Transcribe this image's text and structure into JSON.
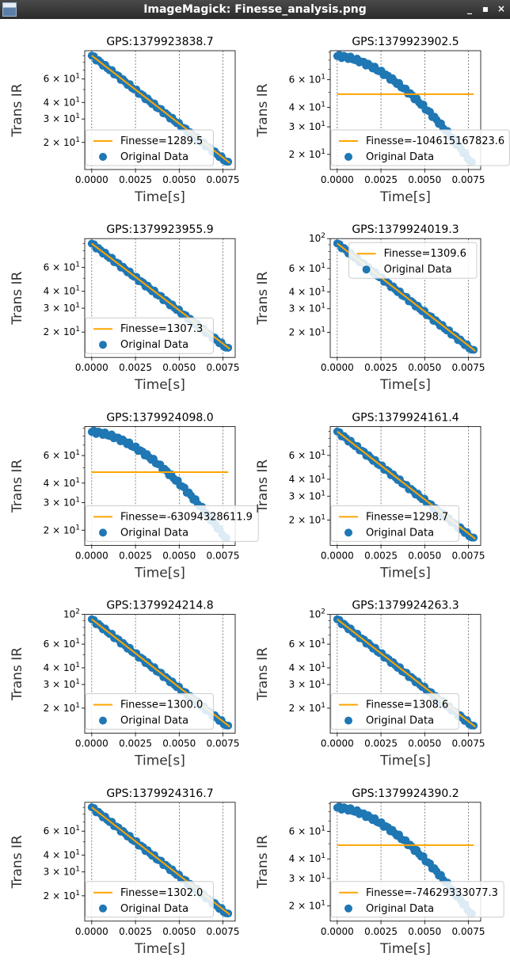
{
  "window": {
    "title": "ImageMagick: Finesse_analysis.png",
    "minimize_glyph": "_",
    "maximize_glyph": "▪",
    "close_glyph": "×"
  },
  "colors": {
    "scatter": "#1f77b4",
    "fit": "#ffa500",
    "grid": "#333333"
  },
  "chart_data": [
    {
      "type": "scatter",
      "title": "GPS:1379923838.7",
      "xlabel": "Time[s]",
      "ylabel": "Trans IR",
      "yscale": "log",
      "xlim": [
        -0.0004,
        0.0082
      ],
      "ylim": [
        12.5,
        98
      ],
      "xticks": [
        "0.0000",
        "0.0025",
        "0.0050",
        "0.0075"
      ],
      "yticks": [
        "2 × 10^1",
        "3 × 10^1",
        "4 × 10^1",
        "6 × 10^1"
      ],
      "grid": "x-axis dashed",
      "legend": "lower-left",
      "series": [
        {
          "name": "Finesse=1289.5",
          "kind": "line",
          "x": [
            0.0,
            0.0079
          ],
          "y": [
            90,
            14
          ]
        },
        {
          "name": "Original Data",
          "kind": "scatter",
          "profile": "exponential",
          "x_range": [
            0.0,
            0.0078
          ],
          "y_start": 90,
          "y_end": 14
        }
      ]
    },
    {
      "type": "scatter",
      "title": "GPS:1379923902.5",
      "xlabel": "Time[s]",
      "ylabel": "Trans IR",
      "yscale": "log",
      "xlim": [
        -0.0004,
        0.0082
      ],
      "ylim": [
        16,
        92
      ],
      "xticks": [
        "0.0000",
        "0.0025",
        "0.0050",
        "0.0075"
      ],
      "yticks": [
        "2 × 10^1",
        "3 × 10^1",
        "4 × 10^1",
        "6 × 10^1"
      ],
      "grid": "x-axis dashed",
      "legend": "lower-left",
      "series": [
        {
          "name": "Finesse=-104615167823.6",
          "kind": "line",
          "x": [
            0.0,
            0.0078
          ],
          "y": [
            48.5,
            48.5
          ]
        },
        {
          "name": "Original Data",
          "kind": "scatter",
          "profile": "shoulder",
          "x_range": [
            0.0,
            0.0077
          ],
          "y_start": 85,
          "y_end": 17.5
        }
      ]
    },
    {
      "type": "scatter",
      "title": "GPS:1379923955.9",
      "xlabel": "Time[s]",
      "ylabel": "Trans IR",
      "yscale": "log",
      "xlim": [
        -0.0004,
        0.0082
      ],
      "ylim": [
        13,
        98
      ],
      "xticks": [
        "0.0000",
        "0.0025",
        "0.0050",
        "0.0075"
      ],
      "yticks": [
        "2 × 10^1",
        "3 × 10^1",
        "4 × 10^1",
        "6 × 10^1"
      ],
      "grid": "x-axis dashed",
      "legend": "lower-left",
      "series": [
        {
          "name": "Finesse=1307.3",
          "kind": "line",
          "x": [
            0.0,
            0.0079
          ],
          "y": [
            90,
            15
          ]
        },
        {
          "name": "Original Data",
          "kind": "scatter",
          "profile": "exponential",
          "x_range": [
            0.0,
            0.0078
          ],
          "y_start": 90,
          "y_end": 15
        }
      ]
    },
    {
      "type": "scatter",
      "title": "GPS:1379924019.3",
      "xlabel": "Time[s]",
      "ylabel": "Trans IR",
      "yscale": "log",
      "xlim": [
        -0.0004,
        0.0082
      ],
      "ylim": [
        13,
        100
      ],
      "xticks": [
        "0.0000",
        "0.0025",
        "0.0050",
        "0.0075"
      ],
      "yticks": [
        "2 × 10^1",
        "3 × 10^1",
        "4 × 10^1",
        "6 × 10^1",
        "10^2"
      ],
      "grid": "x-axis dashed",
      "legend": "upper-right",
      "series": [
        {
          "name": "Finesse=1309.6",
          "kind": "line",
          "x": [
            0.0,
            0.0079
          ],
          "y": [
            92,
            14.5
          ]
        },
        {
          "name": "Original Data",
          "kind": "scatter",
          "profile": "exponential",
          "x_range": [
            0.0,
            0.0078
          ],
          "y_start": 92,
          "y_end": 14.5
        }
      ]
    },
    {
      "type": "scatter",
      "title": "GPS:1379924098.0",
      "xlabel": "Time[s]",
      "ylabel": "Trans IR",
      "yscale": "log",
      "xlim": [
        -0.0004,
        0.0082
      ],
      "ylim": [
        16,
        92
      ],
      "xticks": [
        "0.0000",
        "0.0025",
        "0.0050",
        "0.0075"
      ],
      "yticks": [
        "2 × 10^1",
        "3 × 10^1",
        "4 × 10^1",
        "6 × 10^1"
      ],
      "grid": "x-axis dashed",
      "legend": "lower-left",
      "series": [
        {
          "name": "Finesse=-63094328611.9",
          "kind": "line",
          "x": [
            0.0,
            0.0078
          ],
          "y": [
            47,
            47
          ]
        },
        {
          "name": "Original Data",
          "kind": "scatter",
          "profile": "shoulder",
          "x_range": [
            0.0,
            0.0077
          ],
          "y_start": 85,
          "y_end": 17.5
        }
      ]
    },
    {
      "type": "scatter",
      "title": "GPS:1379924161.4",
      "xlabel": "Time[s]",
      "ylabel": "Trans IR",
      "yscale": "log",
      "xlim": [
        -0.0004,
        0.0082
      ],
      "ylim": [
        13,
        98
      ],
      "xticks": [
        "0.0000",
        "0.0025",
        "0.0050",
        "0.0075"
      ],
      "yticks": [
        "2 × 10^1",
        "3 × 10^1",
        "4 × 10^1",
        "6 × 10^1"
      ],
      "grid": "x-axis dashed",
      "legend": "lower-left",
      "series": [
        {
          "name": "Finesse=1298.7",
          "kind": "line",
          "x": [
            0.0,
            0.0079
          ],
          "y": [
            90,
            14.5
          ]
        },
        {
          "name": "Original Data",
          "kind": "scatter",
          "profile": "exponential",
          "x_range": [
            0.0,
            0.0078
          ],
          "y_start": 90,
          "y_end": 14.5
        }
      ]
    },
    {
      "type": "scatter",
      "title": "GPS:1379924214.8",
      "xlabel": "Time[s]",
      "ylabel": "Trans IR",
      "yscale": "log",
      "xlim": [
        -0.0004,
        0.0082
      ],
      "ylim": [
        13,
        100
      ],
      "xticks": [
        "0.0000",
        "0.0025",
        "0.0050",
        "0.0075"
      ],
      "yticks": [
        "2 × 10^1",
        "3 × 10^1",
        "4 × 10^1",
        "6 × 10^1",
        "10^2"
      ],
      "grid": "x-axis dashed",
      "legend": "lower-left",
      "series": [
        {
          "name": "Finesse=1300.0",
          "kind": "line",
          "x": [
            0.0,
            0.0079
          ],
          "y": [
            92,
            14.5
          ]
        },
        {
          "name": "Original Data",
          "kind": "scatter",
          "profile": "exponential",
          "x_range": [
            0.0,
            0.0078
          ],
          "y_start": 92,
          "y_end": 14.5
        }
      ]
    },
    {
      "type": "scatter",
      "title": "GPS:1379924263.3",
      "xlabel": "Time[s]",
      "ylabel": "Trans IR",
      "yscale": "log",
      "xlim": [
        -0.0004,
        0.0082
      ],
      "ylim": [
        13,
        100
      ],
      "xticks": [
        "0.0000",
        "0.0025",
        "0.0050",
        "0.0075"
      ],
      "yticks": [
        "2 × 10^1",
        "3 × 10^1",
        "4 × 10^1",
        "6 × 10^1",
        "10^2"
      ],
      "grid": "x-axis dashed",
      "legend": "lower-left",
      "series": [
        {
          "name": "Finesse=1308.6",
          "kind": "line",
          "x": [
            0.0,
            0.0079
          ],
          "y": [
            92,
            14.5
          ]
        },
        {
          "name": "Original Data",
          "kind": "scatter",
          "profile": "exponential",
          "x_range": [
            0.0,
            0.0078
          ],
          "y_start": 92,
          "y_end": 14.5
        }
      ]
    },
    {
      "type": "scatter",
      "title": "GPS:1379924316.7",
      "xlabel": "Time[s]",
      "ylabel": "Trans IR",
      "yscale": "log",
      "xlim": [
        -0.0004,
        0.0082
      ],
      "ylim": [
        13,
        98
      ],
      "xticks": [
        "0.0000",
        "0.0025",
        "0.0050",
        "0.0075"
      ],
      "yticks": [
        "2 × 10^1",
        "3 × 10^1",
        "4 × 10^1",
        "6 × 10^1"
      ],
      "grid": "x-axis dashed",
      "legend": "lower-left",
      "series": [
        {
          "name": "Finesse=1302.0",
          "kind": "line",
          "x": [
            0.0,
            0.0079
          ],
          "y": [
            90,
            14.5
          ]
        },
        {
          "name": "Original Data",
          "kind": "scatter",
          "profile": "exponential",
          "x_range": [
            0.0,
            0.0078
          ],
          "y_start": 90,
          "y_end": 14.5
        }
      ]
    },
    {
      "type": "scatter",
      "title": "GPS:1379924390.2",
      "xlabel": "Time[s]",
      "ylabel": "Trans IR",
      "yscale": "log",
      "xlim": [
        -0.0004,
        0.0082
      ],
      "ylim": [
        16,
        92
      ],
      "xticks": [
        "0.0000",
        "0.0025",
        "0.0050",
        "0.0075"
      ],
      "yticks": [
        "2 × 10^1",
        "3 × 10^1",
        "4 × 10^1",
        "6 × 10^1"
      ],
      "grid": "x-axis dashed",
      "legend": "lower-left",
      "series": [
        {
          "name": "Finesse=-74629333077.3",
          "kind": "line",
          "x": [
            0.0,
            0.0078
          ],
          "y": [
            49,
            49
          ]
        },
        {
          "name": "Original Data",
          "kind": "scatter",
          "profile": "shoulder",
          "x_range": [
            0.0,
            0.0077
          ],
          "y_start": 85,
          "y_end": 17.5
        }
      ]
    }
  ]
}
